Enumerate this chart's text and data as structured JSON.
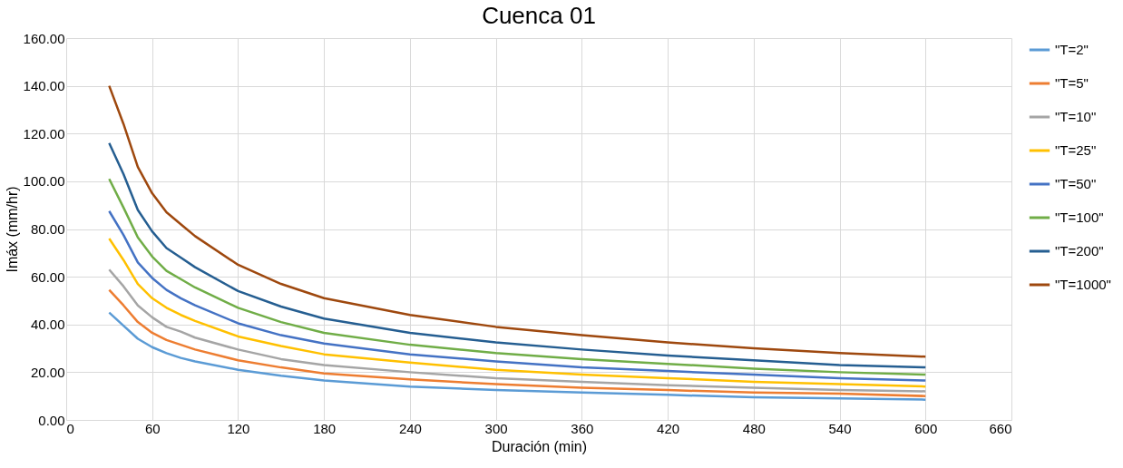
{
  "chart_data": {
    "type": "line",
    "title": "Cuenca 01",
    "xlabel": "Duración (min)",
    "ylabel": "Imáx (mm/hr)",
    "x": [
      30,
      40,
      50,
      60,
      70,
      80,
      90,
      120,
      150,
      180,
      240,
      300,
      360,
      420,
      480,
      540,
      600
    ],
    "series": [
      {
        "name": "\"T=2\"",
        "color": "#5b9bd5",
        "values": [
          45,
          39.5,
          34,
          30.5,
          28,
          26,
          24.5,
          21,
          18.5,
          16.5,
          14,
          12.5,
          11.5,
          10.5,
          9.5,
          9,
          8.5
        ]
      },
      {
        "name": "\"T=5\"",
        "color": "#ed7d31",
        "values": [
          54.5,
          48,
          41,
          36.5,
          33.5,
          31.5,
          29.5,
          25,
          22,
          19.5,
          17,
          15,
          13.5,
          12.5,
          11.5,
          11,
          10
        ]
      },
      {
        "name": "\"T=10\"",
        "color": "#a5a5a5",
        "values": [
          63,
          56,
          48,
          43,
          39,
          37,
          34.5,
          29.5,
          25.5,
          23,
          20,
          17.5,
          16,
          14.5,
          13.5,
          12.5,
          12
        ]
      },
      {
        "name": "\"T=25\"",
        "color": "#ffc000",
        "values": [
          76,
          67,
          57,
          51,
          47,
          44,
          41.5,
          35,
          31,
          27.5,
          24,
          21,
          19,
          17.5,
          16,
          15,
          14
        ]
      },
      {
        "name": "\"T=50\"",
        "color": "#4472c4",
        "values": [
          87.5,
          77.5,
          66,
          59.5,
          54.5,
          51,
          48,
          40.5,
          35.5,
          32,
          27.5,
          24.5,
          22,
          20.5,
          19,
          17.5,
          16.5
        ]
      },
      {
        "name": "\"T=100\"",
        "color": "#70ad47",
        "values": [
          101,
          89,
          76.5,
          68.5,
          62.5,
          59,
          55.5,
          47,
          41,
          36.5,
          31.5,
          28,
          25.5,
          23.5,
          21.5,
          20,
          19
        ]
      },
      {
        "name": "\"T=200\"",
        "color": "#255e91",
        "values": [
          116,
          103,
          88,
          79,
          72,
          68,
          64,
          54,
          47.5,
          42.5,
          36.5,
          32.5,
          29.5,
          27,
          25,
          23,
          22
        ]
      },
      {
        "name": "\"T=1000\"",
        "color": "#9e480e",
        "values": [
          140,
          124,
          106,
          95,
          87,
          82,
          77,
          65,
          57,
          51,
          44,
          39,
          35.5,
          32.5,
          30,
          28,
          26.5
        ]
      }
    ],
    "xlim": [
      0,
      660
    ],
    "xticks": [
      0,
      60,
      120,
      180,
      240,
      300,
      360,
      420,
      480,
      540,
      600,
      660
    ],
    "ylim": [
      0,
      160
    ],
    "yticks": [
      {
        "value": 0,
        "label": "0.00"
      },
      {
        "value": 20,
        "label": "20.00"
      },
      {
        "value": 40,
        "label": "40.00"
      },
      {
        "value": 60,
        "label": "60.00"
      },
      {
        "value": 80,
        "label": "80.00"
      },
      {
        "value": 100,
        "label": "100.00"
      },
      {
        "value": 120,
        "label": "120.00"
      },
      {
        "value": 140,
        "label": "140.00"
      },
      {
        "value": 160,
        "label": "160.00"
      }
    ],
    "grid": true,
    "legend": "right",
    "marker": "none",
    "line_style": "solid"
  }
}
